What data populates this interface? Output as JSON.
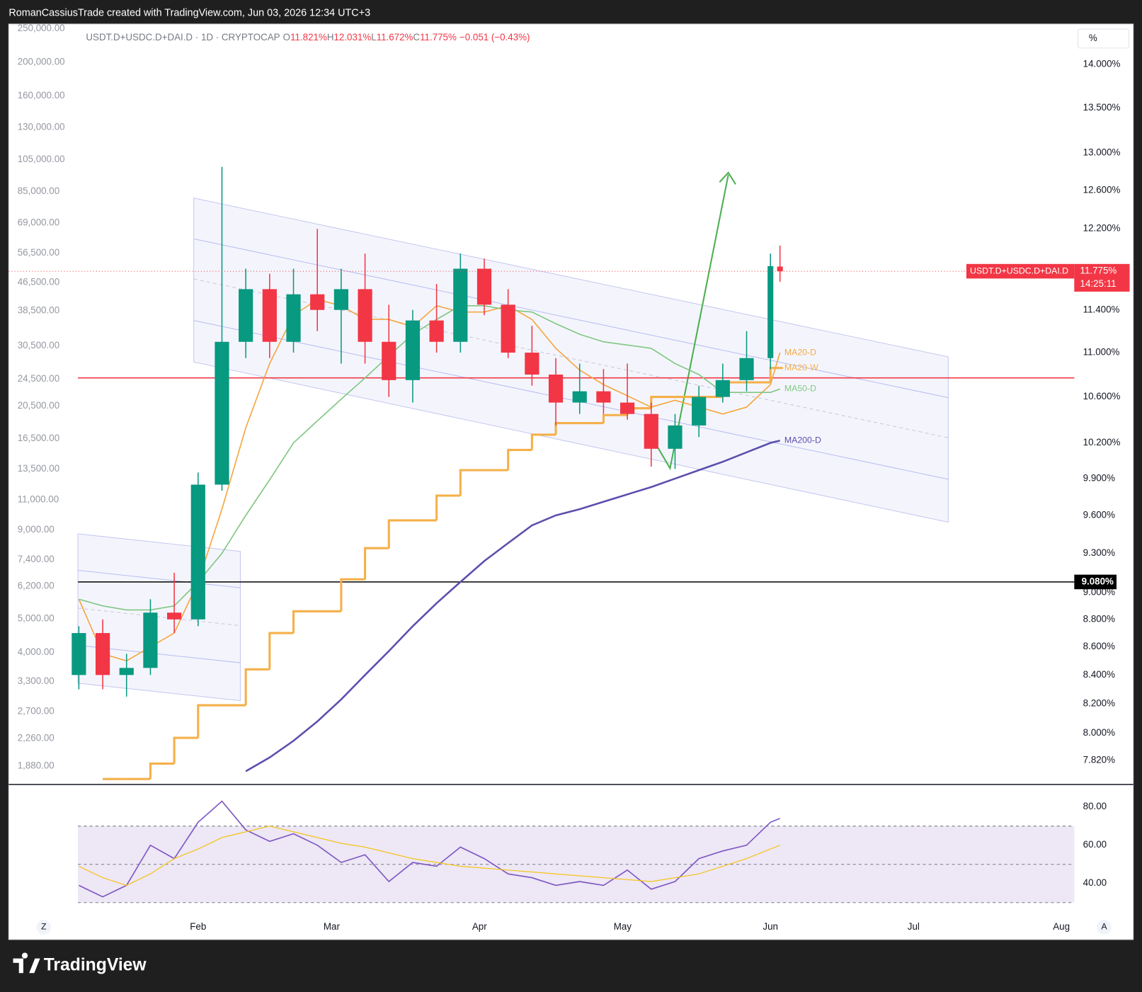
{
  "header": {
    "attribution": "RomanCassiusTrade created with TradingView.com, Jun 03, 2026 12:34 UTC+3",
    "unit": "%"
  },
  "legend": {
    "symbol": "USDT.D+USDC.D+DAI.D · 1D · CRYPTOCAP",
    "ohlc": [
      {
        "key": "O",
        "value": "11.821%"
      },
      {
        "key": "H",
        "value": "12.031%"
      },
      {
        "key": "L",
        "value": "11.672%"
      },
      {
        "key": "C",
        "value": "11.775%"
      }
    ],
    "change": "−0.051 (−0.43%)"
  },
  "chart_data": [
    {
      "type": "candlestick",
      "log": true,
      "grid": false,
      "up_color": "#089981",
      "down_color": "#f23645",
      "x": [
        7,
        12,
        17,
        22,
        27,
        32,
        37,
        42,
        47,
        52,
        57,
        62,
        67,
        72,
        77,
        82,
        87,
        92,
        97,
        102,
        107,
        112,
        117,
        122,
        127,
        132,
        137,
        142,
        147,
        152,
        154
      ],
      "open": [
        8.4,
        8.7,
        8.4,
        8.45,
        8.85,
        8.8,
        9.85,
        11.1,
        11.6,
        11.1,
        11.55,
        11.4,
        11.6,
        11.1,
        10.75,
        11.3,
        11.1,
        11.8,
        11.45,
        11.0,
        10.8,
        10.55,
        10.65,
        10.55,
        10.45,
        10.15,
        10.35,
        10.6,
        10.75,
        10.95,
        11.821
      ],
      "high": [
        8.75,
        8.8,
        8.55,
        8.95,
        9.15,
        9.95,
        12.85,
        11.8,
        11.75,
        11.8,
        12.2,
        11.8,
        11.95,
        11.45,
        11.4,
        11.65,
        11.95,
        11.9,
        11.6,
        11.25,
        10.95,
        10.9,
        10.85,
        10.9,
        10.55,
        10.45,
        10.7,
        10.9,
        11.2,
        11.95,
        12.031
      ],
      "low": [
        8.3,
        8.3,
        8.25,
        8.4,
        8.7,
        8.75,
        9.8,
        10.95,
        10.95,
        11.0,
        11.2,
        10.9,
        10.9,
        10.6,
        10.55,
        11.0,
        11.0,
        11.35,
        10.95,
        10.7,
        10.35,
        10.45,
        10.45,
        10.4,
        10.0,
        9.98,
        10.25,
        10.55,
        10.65,
        10.85,
        11.672
      ],
      "close": [
        8.7,
        8.4,
        8.45,
        8.85,
        8.8,
        9.85,
        11.1,
        11.6,
        11.1,
        11.55,
        11.4,
        11.6,
        11.1,
        10.75,
        11.3,
        11.1,
        11.8,
        11.45,
        11.0,
        10.8,
        10.55,
        10.65,
        10.55,
        10.45,
        10.15,
        10.35,
        10.6,
        10.75,
        10.95,
        11.826,
        11.775
      ],
      "series": [
        {
          "name": "MA20-W",
          "color": "#f5b04a",
          "step": true,
          "values": [
            null,
            7.7,
            7.7,
            7.8,
            7.97,
            8.19,
            8.19,
            8.44,
            8.7,
            8.86,
            8.86,
            9.1,
            9.34,
            9.56,
            9.56,
            9.76,
            9.97,
            9.97,
            10.14,
            10.27,
            10.37,
            10.37,
            10.44,
            10.5,
            10.6,
            10.6,
            10.6,
            10.73,
            10.73,
            10.86,
            10.86
          ]
        },
        {
          "name": "MA20-D",
          "color": "#f5a742",
          "values": [
            8.95,
            8.55,
            8.5,
            8.6,
            8.7,
            9.08,
            9.65,
            10.33,
            10.9,
            11.35,
            11.5,
            11.44,
            11.31,
            11.31,
            11.24,
            11.44,
            11.38,
            11.38,
            11.44,
            11.31,
            11.04,
            10.84,
            10.71,
            10.61,
            10.51,
            10.57,
            10.51,
            10.45,
            10.51,
            10.71,
            11.0
          ]
        },
        {
          "name": "MA50-D",
          "color": "#81c784",
          "values": [
            8.95,
            8.9,
            8.87,
            8.87,
            8.9,
            9.08,
            9.3,
            9.6,
            9.89,
            10.2,
            10.39,
            10.58,
            10.77,
            10.97,
            11.17,
            11.31,
            11.44,
            11.44,
            11.4,
            11.38,
            11.27,
            11.17,
            11.1,
            11.07,
            11.04,
            10.9,
            10.8,
            10.64,
            10.64,
            10.64,
            10.67
          ]
        },
        {
          "name": "MA200-D",
          "color": "#5b4fae",
          "values": [
            null,
            null,
            null,
            null,
            null,
            null,
            null,
            7.75,
            7.84,
            7.95,
            8.08,
            8.23,
            8.4,
            8.57,
            8.75,
            8.92,
            9.08,
            9.24,
            9.38,
            9.52,
            9.6,
            9.65,
            9.71,
            9.77,
            9.83,
            9.9,
            9.97,
            10.04,
            10.12,
            10.2,
            10.22
          ]
        }
      ],
      "ylim": [
        7.67,
        14.48
      ],
      "yticks": [
        {
          "value": 14,
          "label": "14.000%"
        },
        {
          "value": 13.5,
          "label": "13.500%"
        },
        {
          "value": 13,
          "label": "13.000%"
        },
        {
          "value": 12.6,
          "label": "12.600%"
        },
        {
          "value": 12.2,
          "label": "12.200%"
        },
        {
          "value": 11.4,
          "label": "11.400%"
        },
        {
          "value": 11,
          "label": "11.000%"
        },
        {
          "value": 10.6,
          "label": "10.600%"
        },
        {
          "value": 10.2,
          "label": "10.200%"
        },
        {
          "value": 9.9,
          "label": "9.900%"
        },
        {
          "value": 9.6,
          "label": "9.600%"
        },
        {
          "value": 9.3,
          "label": "9.300%"
        },
        {
          "value": 9,
          "label": "9.000%"
        },
        {
          "value": 8.8,
          "label": "8.800%"
        },
        {
          "value": 8.6,
          "label": "8.600%"
        },
        {
          "value": 8.4,
          "label": "8.400%"
        },
        {
          "value": 8.2,
          "label": "8.200%"
        },
        {
          "value": 8,
          "label": "8.000%"
        },
        {
          "value": 7.82,
          "label": "7.820%"
        }
      ],
      "y2lim": [
        1674,
        258000
      ],
      "y2ticks": [
        {
          "value": 250000,
          "label": "250,000.00"
        },
        {
          "value": 200000,
          "label": "200,000.00"
        },
        {
          "value": 160000,
          "label": "160,000.00"
        },
        {
          "value": 130000,
          "label": "130,000.00"
        },
        {
          "value": 105000,
          "label": "105,000.00"
        },
        {
          "value": 85000,
          "label": "85,000.00"
        },
        {
          "value": 69000,
          "label": "69,000.00"
        },
        {
          "value": 56500,
          "label": "56,500.00"
        },
        {
          "value": 46500,
          "label": "46,500.00"
        },
        {
          "value": 38500,
          "label": "38,500.00"
        },
        {
          "value": 30500,
          "label": "30,500.00"
        },
        {
          "value": 24500,
          "label": "24,500.00"
        },
        {
          "value": 20500,
          "label": "20,500.00"
        },
        {
          "value": 16500,
          "label": "16,500.00"
        },
        {
          "value": 13500,
          "label": "13,500.00"
        },
        {
          "value": 11000,
          "label": "11,000.00"
        },
        {
          "value": 9000,
          "label": "9,000.00"
        },
        {
          "value": 7400,
          "label": "7,400.00"
        },
        {
          "value": 6200,
          "label": "6,200.00"
        },
        {
          "value": 5000,
          "label": "5,000.00"
        },
        {
          "value": 4000,
          "label": "4,000.00"
        },
        {
          "value": 3300,
          "label": "3,300.00"
        },
        {
          "value": 2700,
          "label": "2,700.00"
        },
        {
          "value": 2260,
          "label": "2,260.00"
        },
        {
          "value": 1880,
          "label": "1,880.00"
        }
      ],
      "xlim": [
        -7.7,
        215.7
      ],
      "xticks": [
        {
          "value": 32,
          "label": "Feb"
        },
        {
          "value": 60,
          "label": "Mar"
        },
        {
          "value": 91,
          "label": "Apr"
        },
        {
          "value": 121,
          "label": "May"
        },
        {
          "value": 152,
          "label": "Jun"
        },
        {
          "value": 182,
          "label": "Jul"
        },
        {
          "value": 213,
          "label": "Aug"
        }
      ],
      "hlines": [
        {
          "value": 10.77,
          "color": "#f23645"
        },
        {
          "value": 9.08,
          "color": "#000000",
          "label": "9.080%"
        }
      ],
      "last": {
        "value": 11.775,
        "label": "11.775%",
        "name": "USDT.D+USDC.D+DAI.D",
        "countdown": "14:25:11",
        "color": "#f23645"
      }
    },
    {
      "type": "line",
      "grid": false,
      "x": [
        7,
        12,
        17,
        22,
        27,
        32,
        37,
        42,
        47,
        52,
        57,
        62,
        67,
        72,
        77,
        82,
        87,
        92,
        97,
        102,
        107,
        112,
        117,
        122,
        127,
        132,
        137,
        142,
        147,
        152,
        154
      ],
      "series": [
        {
          "color": "#7e57c2",
          "values": [
            39,
            33,
            39,
            60,
            53,
            72,
            83,
            68,
            62,
            66,
            60,
            51,
            55,
            41,
            51,
            49,
            59,
            53,
            45,
            43,
            39,
            41,
            39,
            47,
            37,
            41,
            53,
            57,
            60,
            72,
            74
          ]
        },
        {
          "color": "#f5c518",
          "values": [
            49,
            43,
            39,
            45,
            53,
            58,
            64,
            67,
            70,
            67,
            64,
            61,
            59,
            56,
            53,
            51,
            49,
            48,
            47,
            46,
            45,
            44,
            43,
            42,
            41,
            43,
            45,
            49,
            53,
            58,
            60
          ]
        }
      ],
      "ylim": [
        24,
        91.4
      ],
      "yticks": [
        {
          "value": 40,
          "label": "40.00"
        },
        {
          "value": 60,
          "label": "60.00"
        },
        {
          "value": 80,
          "label": "80.00"
        }
      ],
      "band": [
        30,
        70
      ],
      "band_color": "#ede7f6",
      "hlines": [
        30,
        50,
        70
      ],
      "xlim": [
        -7.7,
        215.7
      ]
    }
  ],
  "footer": {
    "brand": "TradingView",
    "left_button": "Z",
    "right_button": "A"
  }
}
